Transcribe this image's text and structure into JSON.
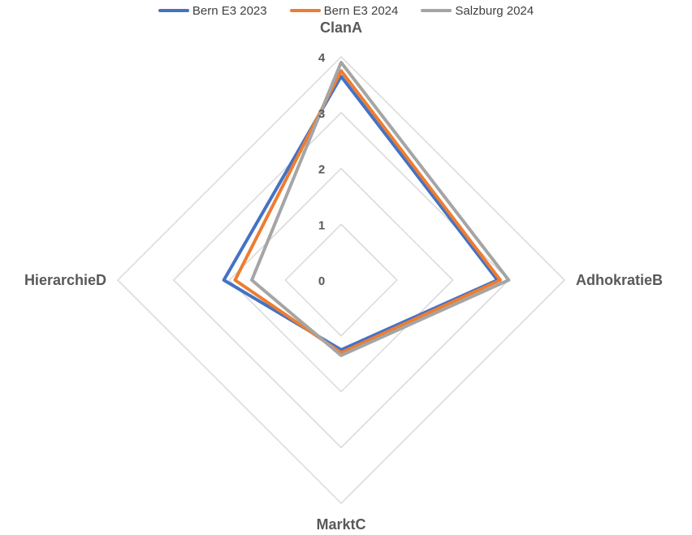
{
  "chart_data": {
    "type": "radar",
    "title": "",
    "axes": [
      "ClanA",
      "AdhokratieB",
      "MarktC",
      "HierarchieD"
    ],
    "tick_labels": [
      "0",
      "1",
      "2",
      "3",
      "4"
    ],
    "rlim": [
      0,
      4
    ],
    "grid": true,
    "legend_position": "top",
    "series": [
      {
        "name": "Bern E3 2023",
        "color": "#4472C4",
        "values": [
          3.65,
          2.8,
          1.25,
          2.1
        ]
      },
      {
        "name": "Bern E3 2024",
        "color": "#ED7D31",
        "values": [
          3.75,
          2.85,
          1.3,
          1.9
        ]
      },
      {
        "name": "Salzburg 2024",
        "color": "#A5A5A5",
        "values": [
          3.9,
          3.0,
          1.35,
          1.6
        ]
      }
    ]
  }
}
